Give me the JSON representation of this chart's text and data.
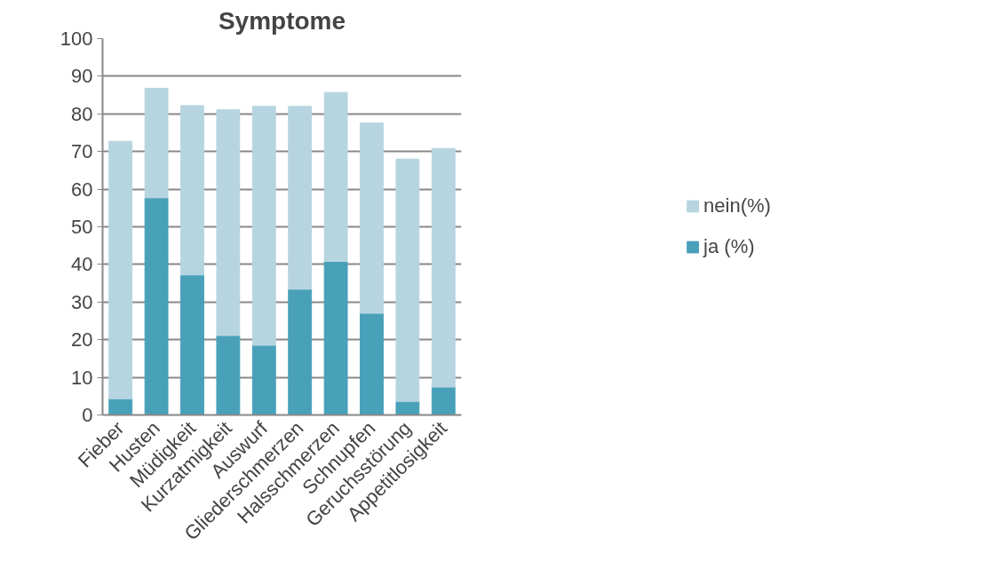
{
  "chart_data": {
    "type": "bar",
    "title": "Symptome",
    "stacked": true,
    "categories": [
      "Fieber",
      "Husten",
      "Müdigkeit",
      "Kurzatmigkeit",
      "Auswurf",
      "Gliederschmerzen",
      "Halsschmerzen",
      "Schnupfen",
      "Geruchsstörung",
      "Appetitlosigkeit"
    ],
    "series": [
      {
        "name": "ja (%)",
        "color": "#48a1b9",
        "values": [
          4.3,
          57.7,
          37.2,
          21.1,
          18.5,
          33.4,
          40.8,
          27.0,
          3.6,
          7.4
        ]
      },
      {
        "name": "nein(%)",
        "color": "#b6d5e0",
        "values": [
          68.4,
          29.1,
          45.0,
          60.0,
          63.5,
          48.6,
          44.9,
          50.6,
          64.4,
          63.4
        ]
      }
    ],
    "ylim": [
      0,
      100
    ],
    "yticks": [
      0,
      10,
      20,
      30,
      40,
      50,
      60,
      70,
      80,
      90,
      100
    ],
    "grid": "y",
    "legend": "right"
  }
}
